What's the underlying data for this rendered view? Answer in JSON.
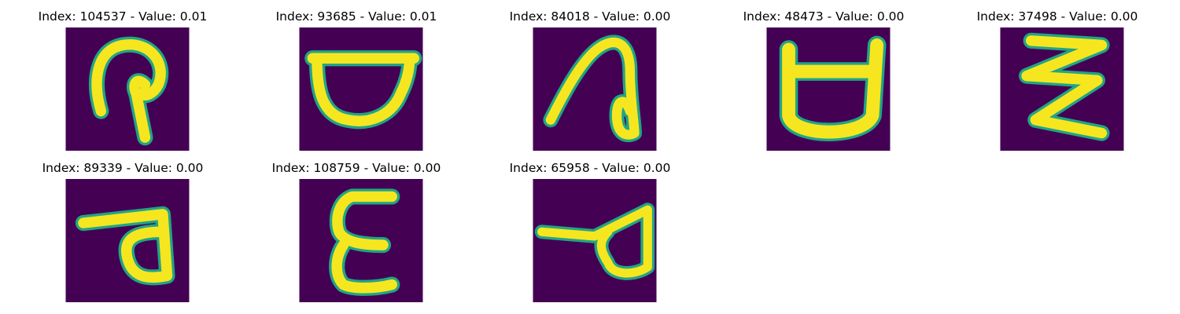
{
  "figure": {
    "background": "#ffffff",
    "palette": {
      "background": "#440154",
      "stroke": "#f6e620",
      "edge": "#21a585"
    },
    "panels": [
      {
        "title": "Index: 104537 - Value: 0.01",
        "glyph": "hooked-loop-character"
      },
      {
        "title": "Index: 93685 - Value: 0.01",
        "glyph": "bowl-character"
      },
      {
        "title": "Index: 84018 - Value: 0.00",
        "glyph": "arch-with-loop-character"
      },
      {
        "title": "Index: 48473 - Value: 0.00",
        "glyph": "cup-character"
      },
      {
        "title": "Index: 37498 - Value: 0.00",
        "glyph": "zigzag-character"
      },
      {
        "title": "Index: 89339 - Value: 0.00",
        "glyph": "flag-loop-character"
      },
      {
        "title": "Index: 108759 - Value: 0.00",
        "glyph": "epsilon-character"
      },
      {
        "title": "Index: 65958 - Value: 0.00",
        "glyph": "pointer-loop-character"
      }
    ]
  }
}
